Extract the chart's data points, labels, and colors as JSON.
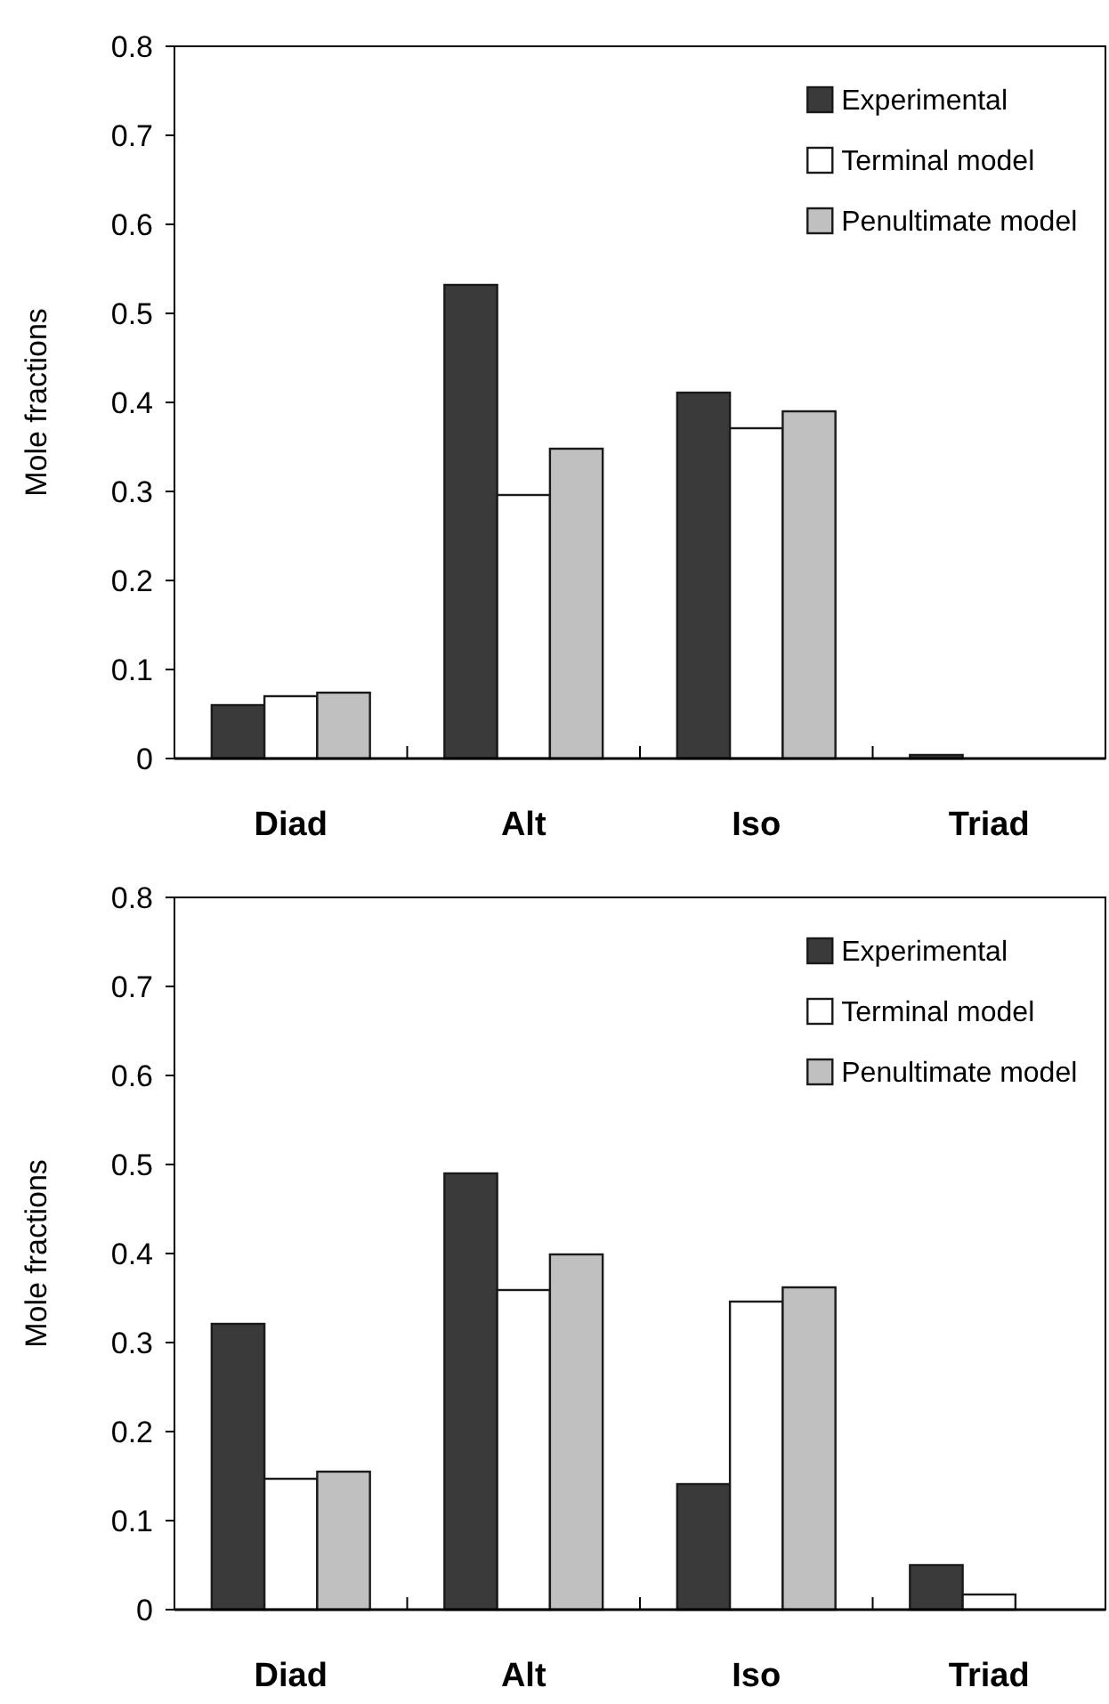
{
  "chart_data": [
    {
      "type": "bar",
      "ylabel": "Mole fractions",
      "categories": [
        "Diad",
        "Alt",
        "Iso",
        "Triad"
      ],
      "ylim": [
        0,
        0.8
      ],
      "yticks": [
        0,
        0.1,
        0.2,
        0.3,
        0.4,
        0.5,
        0.6,
        0.7,
        0.8
      ],
      "legend": "top right",
      "series": [
        {
          "name": "Experimental",
          "color": "#3a3a3a",
          "values": [
            0.06,
            0.532,
            0.411,
            0.004
          ]
        },
        {
          "name": "Terminal model",
          "color": "#ffffff",
          "values": [
            0.07,
            0.296,
            0.371,
            0
          ]
        },
        {
          "name": "Penultimate model",
          "color": "#c0c0c0",
          "values": [
            0.074,
            0.348,
            0.39,
            0
          ]
        }
      ]
    },
    {
      "type": "bar",
      "ylabel": "Mole fractions",
      "categories": [
        "Diad",
        "Alt",
        "Iso",
        "Triad"
      ],
      "ylim": [
        0,
        0.8
      ],
      "yticks": [
        0,
        0.1,
        0.2,
        0.3,
        0.4,
        0.5,
        0.6,
        0.7,
        0.8
      ],
      "legend": "top right",
      "series": [
        {
          "name": "Experimental",
          "color": "#3a3a3a",
          "values": [
            0.321,
            0.49,
            0.141,
            0.05
          ]
        },
        {
          "name": "Terminal model",
          "color": "#ffffff",
          "values": [
            0.147,
            0.359,
            0.346,
            0.017
          ]
        },
        {
          "name": "Penultimate model",
          "color": "#c0c0c0",
          "values": [
            0.155,
            0.399,
            0.362,
            0
          ]
        }
      ]
    }
  ]
}
